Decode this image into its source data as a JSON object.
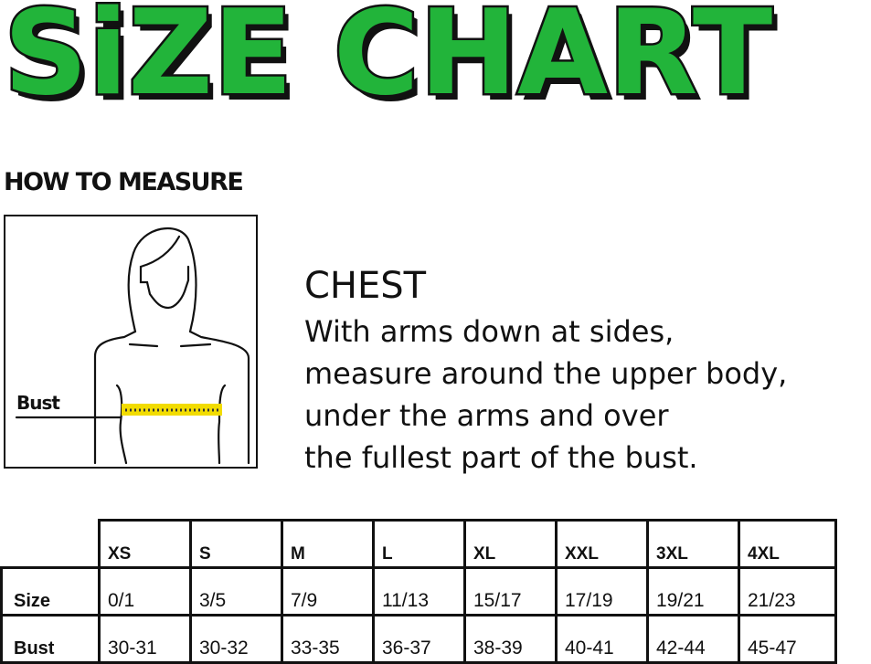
{
  "title": "SiZE CHART",
  "how_to_measure": "HOW TO MEASURE",
  "figure": {
    "label": "Bust",
    "tape_color": "#f2dc00"
  },
  "chest": {
    "heading": "CHEST",
    "text": "With arms down at sides,\nmeasure around the upper body,\nunder the arms and over\nthe fullest part of the bust."
  },
  "colors": {
    "title_green": "#22b43a"
  },
  "table": {
    "sizes": [
      "XS",
      "S",
      "M",
      "L",
      "XL",
      "XXL",
      "3XL",
      "4XL"
    ],
    "rows": [
      {
        "label": "Size",
        "values": [
          "0/1",
          "3/5",
          "7/9",
          "11/13",
          "15/17",
          "17/19",
          "19/21",
          "21/23"
        ]
      },
      {
        "label": "Bust",
        "values": [
          "30-31",
          "30-32",
          "33-35",
          "36-37",
          "38-39",
          "40-41",
          "42-44",
          "45-47"
        ]
      }
    ]
  }
}
